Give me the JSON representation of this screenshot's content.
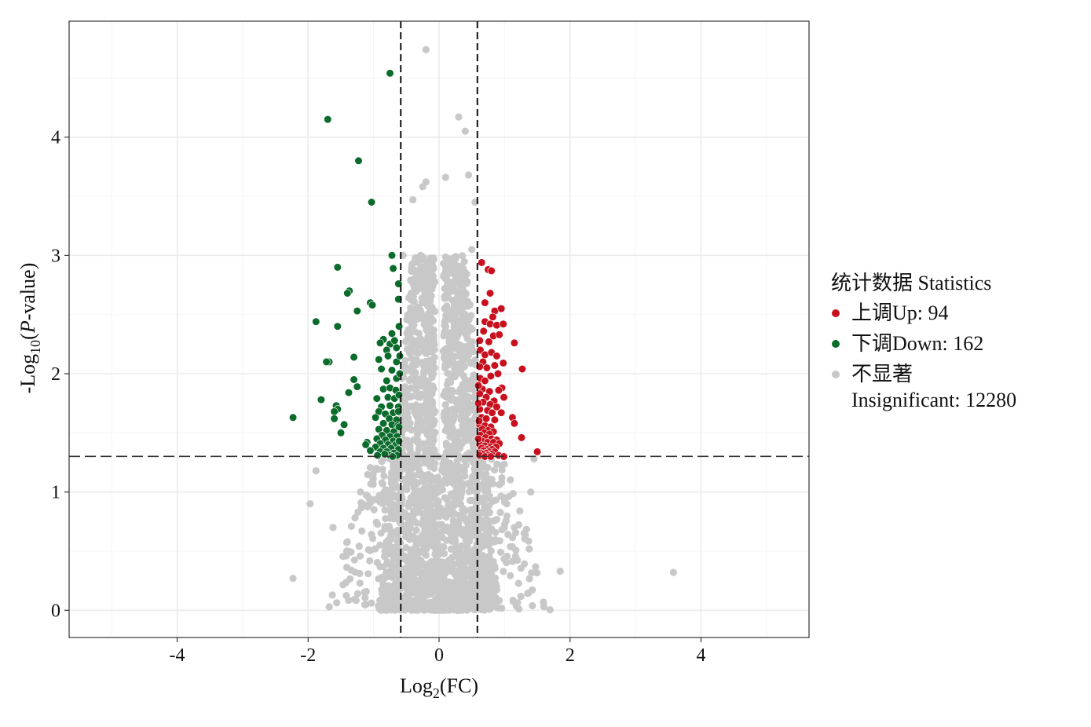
{
  "chart_data": {
    "type": "scatter",
    "title": "",
    "xlabel": "Log",
    "xlabel_sub": "2",
    "xlabel_tail": "(FC)",
    "ylabel_prefix": "-Log",
    "ylabel_sub": "10",
    "ylabel_open": "(",
    "ylabel_italic": "P",
    "ylabel_tail": "-value)",
    "xlim": [
      -5.65,
      5.65
    ],
    "ylim": [
      -0.23,
      4.98
    ],
    "x_ticks": [
      -4,
      -2,
      0,
      2,
      4
    ],
    "x_tick_labels": [
      "-4",
      "-2",
      "0",
      "2",
      "4"
    ],
    "y_ticks": [
      0,
      1,
      2,
      3,
      4
    ],
    "y_tick_labels": [
      "0",
      "1",
      "2",
      "3",
      "4"
    ],
    "grid": true,
    "fc_threshold": [
      -0.585,
      0.585
    ],
    "p_threshold": 1.301,
    "legend": {
      "title": "统计数据 Statistics",
      "position": "right",
      "items": [
        {
          "label": "上调Up: 94",
          "color": "#c8101e"
        },
        {
          "label": "下调Down: 162",
          "color": "#0b6b2b"
        },
        {
          "label": "不显著\nInsignificant: 12280",
          "color": "#c8c8c8"
        }
      ]
    },
    "series": [
      {
        "name": "上调Up: 94",
        "color": "#c8101e",
        "points": [
          [
            0.65,
            2.94
          ],
          [
            0.75,
            2.88
          ],
          [
            0.8,
            2.87
          ],
          [
            0.78,
            2.68
          ],
          [
            0.7,
            2.6
          ],
          [
            0.85,
            2.53
          ],
          [
            0.95,
            2.55
          ],
          [
            0.82,
            2.48
          ],
          [
            0.7,
            2.44
          ],
          [
            0.78,
            2.42
          ],
          [
            0.88,
            2.41
          ],
          [
            0.98,
            2.42
          ],
          [
            0.68,
            2.36
          ],
          [
            0.83,
            2.32
          ],
          [
            0.92,
            2.33
          ],
          [
            1.15,
            2.26
          ],
          [
            0.76,
            2.27
          ],
          [
            0.63,
            2.2
          ],
          [
            0.7,
            2.16
          ],
          [
            0.8,
            2.18
          ],
          [
            0.88,
            2.15
          ],
          [
            0.67,
            2.1
          ],
          [
            0.85,
            2.07
          ],
          [
            0.98,
            2.09
          ],
          [
            0.73,
            2.05
          ],
          [
            0.62,
            2.06
          ],
          [
            1.27,
            2.04
          ],
          [
            0.9,
            2.0
          ],
          [
            0.79,
            1.98
          ],
          [
            0.63,
            1.96
          ],
          [
            0.7,
            1.94
          ],
          [
            0.96,
            1.88
          ],
          [
            0.66,
            1.87
          ],
          [
            0.77,
            1.85
          ],
          [
            0.91,
            1.86
          ],
          [
            0.62,
            1.83
          ],
          [
            0.72,
            1.8
          ],
          [
            0.99,
            1.8
          ],
          [
            0.84,
            1.77
          ],
          [
            0.67,
            1.76
          ],
          [
            0.78,
            1.74
          ],
          [
            0.88,
            1.72
          ],
          [
            0.62,
            1.7
          ],
          [
            0.74,
            1.69
          ],
          [
            0.81,
            1.67
          ],
          [
            0.95,
            1.67
          ],
          [
            1.12,
            1.63
          ],
          [
            0.65,
            1.63
          ],
          [
            0.72,
            1.62
          ],
          [
            0.85,
            1.61
          ],
          [
            1.15,
            1.58
          ],
          [
            0.62,
            1.57
          ],
          [
            0.7,
            1.56
          ],
          [
            0.79,
            1.55
          ],
          [
            0.66,
            1.53
          ],
          [
            0.75,
            1.52
          ],
          [
            0.83,
            1.51
          ],
          [
            0.69,
            1.5
          ],
          [
            0.77,
            1.49
          ],
          [
            1.26,
            1.46
          ],
          [
            0.63,
            1.48
          ],
          [
            0.71,
            1.46
          ],
          [
            0.8,
            1.45
          ],
          [
            0.88,
            1.44
          ],
          [
            0.66,
            1.43
          ],
          [
            0.74,
            1.42
          ],
          [
            0.83,
            1.42
          ],
          [
            0.92,
            1.41
          ],
          [
            0.62,
            1.4
          ],
          [
            0.7,
            1.39
          ],
          [
            0.78,
            1.38
          ],
          [
            0.87,
            1.38
          ],
          [
            0.65,
            1.37
          ],
          [
            0.73,
            1.36
          ],
          [
            0.81,
            1.36
          ],
          [
            0.68,
            1.35
          ],
          [
            0.76,
            1.34
          ],
          [
            0.85,
            1.34
          ],
          [
            0.64,
            1.33
          ],
          [
            0.72,
            1.33
          ],
          [
            0.8,
            1.32
          ],
          [
            1.5,
            1.34
          ],
          [
            0.67,
            1.32
          ],
          [
            0.75,
            1.31
          ],
          [
            0.62,
            1.31
          ],
          [
            0.7,
            1.3
          ],
          [
            0.79,
            1.3
          ],
          [
            0.91,
            1.31
          ],
          [
            0.99,
            1.3
          ],
          [
            0.6,
            1.45
          ],
          [
            0.61,
            1.6
          ],
          [
            0.6,
            1.75
          ],
          [
            0.62,
            2.28
          ],
          [
            0.6,
            1.9
          ]
        ]
      },
      {
        "name": "下调Down: 162",
        "color": "#0b6b2b",
        "points": [
          [
            -0.75,
            4.54
          ],
          [
            -1.7,
            4.15
          ],
          [
            -1.23,
            3.8
          ],
          [
            -1.03,
            3.45
          ],
          [
            -1.55,
            2.9
          ],
          [
            -0.72,
            3.0
          ],
          [
            -0.7,
            2.89
          ],
          [
            -0.62,
            2.76
          ],
          [
            -1.37,
            2.7
          ],
          [
            -1.4,
            2.68
          ],
          [
            -1.05,
            2.6
          ],
          [
            -1.02,
            2.58
          ],
          [
            -1.25,
            2.53
          ],
          [
            -0.62,
            2.63
          ],
          [
            -1.88,
            2.44
          ],
          [
            -1.55,
            2.4
          ],
          [
            -0.72,
            2.34
          ],
          [
            -0.85,
            2.29
          ],
          [
            -0.9,
            2.26
          ],
          [
            -0.75,
            2.25
          ],
          [
            -0.68,
            2.28
          ],
          [
            -0.8,
            2.2
          ],
          [
            -0.65,
            2.22
          ],
          [
            -1.3,
            2.14
          ],
          [
            -1.68,
            2.1
          ],
          [
            -1.72,
            2.1
          ],
          [
            -0.92,
            2.12
          ],
          [
            -0.78,
            2.15
          ],
          [
            -0.65,
            2.1
          ],
          [
            -0.88,
            2.04
          ],
          [
            -0.72,
            2.03
          ],
          [
            -1.3,
            1.95
          ],
          [
            -1.25,
            1.89
          ],
          [
            -0.65,
            1.96
          ],
          [
            -0.8,
            1.94
          ],
          [
            -1.38,
            1.84
          ],
          [
            -0.85,
            1.87
          ],
          [
            -0.75,
            1.88
          ],
          [
            -0.66,
            1.86
          ],
          [
            -1.8,
            1.78
          ],
          [
            -0.95,
            1.79
          ],
          [
            -0.78,
            1.8
          ],
          [
            -0.68,
            1.79
          ],
          [
            -1.57,
            1.73
          ],
          [
            -1.55,
            1.7
          ],
          [
            -0.88,
            1.72
          ],
          [
            -0.75,
            1.73
          ],
          [
            -0.62,
            1.72
          ],
          [
            -1.6,
            1.68
          ],
          [
            -0.92,
            1.68
          ],
          [
            -0.82,
            1.66
          ],
          [
            -0.7,
            1.67
          ],
          [
            -2.23,
            1.63
          ],
          [
            -1.6,
            1.62
          ],
          [
            -0.97,
            1.63
          ],
          [
            -0.76,
            1.62
          ],
          [
            -0.65,
            1.61
          ],
          [
            -1.45,
            1.57
          ],
          [
            -0.85,
            1.58
          ],
          [
            -0.72,
            1.57
          ],
          [
            -0.63,
            1.56
          ],
          [
            -0.92,
            1.53
          ],
          [
            -0.8,
            1.52
          ],
          [
            -0.69,
            1.51
          ],
          [
            -1.5,
            1.5
          ],
          [
            -0.87,
            1.48
          ],
          [
            -0.75,
            1.47
          ],
          [
            -0.64,
            1.47
          ],
          [
            -0.95,
            1.45
          ],
          [
            -0.82,
            1.44
          ],
          [
            -0.7,
            1.43
          ],
          [
            -1.1,
            1.42
          ],
          [
            -0.9,
            1.41
          ],
          [
            -0.78,
            1.4
          ],
          [
            -0.66,
            1.4
          ],
          [
            -1.12,
            1.4
          ],
          [
            -0.97,
            1.38
          ],
          [
            -0.85,
            1.37
          ],
          [
            -0.73,
            1.37
          ],
          [
            -0.62,
            1.36
          ],
          [
            -1.05,
            1.35
          ],
          [
            -0.9,
            1.34
          ],
          [
            -0.8,
            1.34
          ],
          [
            -0.69,
            1.33
          ],
          [
            -0.75,
            1.31
          ],
          [
            -0.64,
            1.31
          ],
          [
            -0.83,
            1.32
          ],
          [
            -0.94,
            1.31
          ],
          [
            -0.71,
            1.3
          ],
          [
            -0.61,
            1.43
          ],
          [
            -0.61,
            1.55
          ],
          [
            -0.62,
            1.68
          ],
          [
            -0.61,
            1.82
          ],
          [
            -0.6,
            2.0
          ],
          [
            -0.6,
            2.15
          ],
          [
            -0.61,
            2.4
          ]
        ]
      }
    ],
    "insignificant_extremes": [
      [
        -0.2,
        4.74
      ],
      [
        0.3,
        4.17
      ],
      [
        0.4,
        4.05
      ],
      [
        0.1,
        3.66
      ],
      [
        0.45,
        3.68
      ],
      [
        -0.25,
        3.58
      ],
      [
        0.55,
        3.45
      ],
      [
        -0.4,
        3.47
      ],
      [
        -0.2,
        3.62
      ],
      [
        -0.55,
        3.0
      ],
      [
        0.5,
        3.05
      ],
      [
        -2.23,
        0.27
      ],
      [
        -1.97,
        0.9
      ],
      [
        -1.88,
        1.18
      ],
      [
        1.85,
        0.33
      ],
      [
        3.58,
        0.32
      ],
      [
        1.45,
        1.28
      ],
      [
        1.4,
        1.0
      ],
      [
        1.15,
        0.7
      ],
      [
        -1.4,
        0.58
      ],
      [
        -1.62,
        0.7
      ],
      [
        -1.2,
        1.0
      ]
    ]
  }
}
